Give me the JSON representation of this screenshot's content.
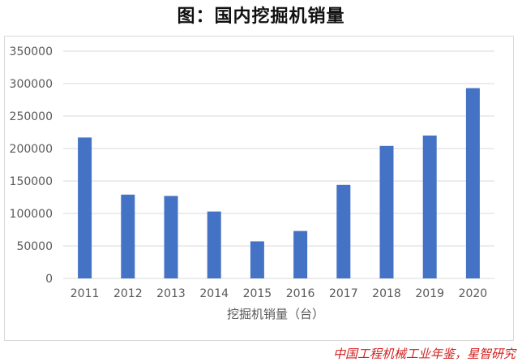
{
  "page": {
    "title": "图：国内挖掘机销量",
    "source": "中国工程机械工业年鉴，星智研究"
  },
  "colors": {
    "bar": "#4472c4",
    "grid": "#d9d9d9",
    "tick_text": "#595959",
    "source_text": "#d21f1f"
  },
  "chart_data": {
    "type": "bar",
    "categories": [
      "2011",
      "2012",
      "2013",
      "2014",
      "2015",
      "2016",
      "2017",
      "2018",
      "2019",
      "2020"
    ],
    "values": [
      217000,
      129000,
      127000,
      103000,
      57000,
      73000,
      144000,
      204000,
      220000,
      293000
    ],
    "xlabel": "挖掘机销量（台）",
    "ylabel": "",
    "ylim": [
      0,
      350000
    ],
    "yticks": [
      "0",
      "50000",
      "100000",
      "150000",
      "200000",
      "250000",
      "300000",
      "350000"
    ],
    "grid": true,
    "legend": "none"
  }
}
